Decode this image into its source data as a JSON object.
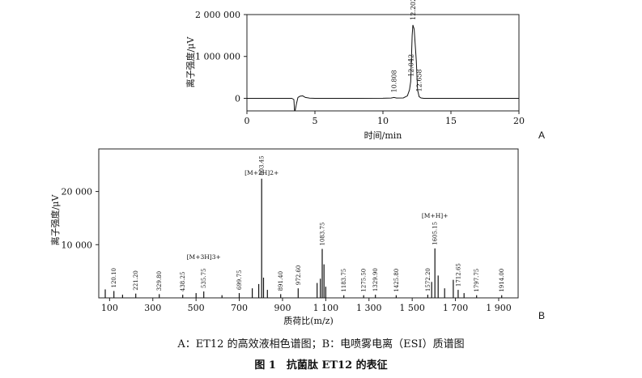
{
  "figure": {
    "subcaption": "A：ET12 的高效液相色谱图；B：电喷雾电离（ESI）质谱图",
    "caption": "图 1　抗菌肽 ET12 的表征"
  },
  "chart_data": [
    {
      "type": "line",
      "panel_label": "A",
      "xlabel": "时间/min",
      "ylabel": "离子强度/μV",
      "xlim": [
        0,
        20
      ],
      "ylim": [
        -300000,
        2000000
      ],
      "xticks": [
        0,
        5,
        10,
        15,
        20
      ],
      "xtick_labels": [
        "0",
        "5",
        "10",
        "15",
        "20"
      ],
      "yticks": [
        0,
        1000000,
        2000000
      ],
      "ytick_labels": [
        "0",
        "1 000 000",
        "2 000 000"
      ],
      "grid": false,
      "series": [
        {
          "x": [
            0,
            3.3,
            3.45,
            3.5,
            3.55,
            3.65,
            3.75,
            3.9,
            4.1,
            4.3,
            4.6,
            5.0,
            6.0,
            8.0,
            10.0,
            10.6,
            10.808,
            11.0,
            11.5,
            11.8,
            11.95,
            12.042,
            12.1,
            12.15,
            12.202,
            12.3,
            12.45,
            12.55,
            12.658,
            12.8,
            13.0,
            14.0,
            20.0
          ],
          "y": [
            0,
            0,
            -30000,
            -290000,
            -290000,
            -120000,
            20000,
            50000,
            60000,
            20000,
            5000,
            0,
            0,
            0,
            2000,
            8000,
            20000,
            8000,
            10000,
            60000,
            200000,
            400000,
            1000000,
            1500000,
            1750000,
            1650000,
            900000,
            200000,
            40000,
            10000,
            0,
            0,
            0
          ]
        }
      ],
      "peak_labels": [
        {
          "x": 10.808,
          "text": "10.808"
        },
        {
          "x": 12.042,
          "text": "12.042"
        },
        {
          "x": 12.202,
          "text": "12.202"
        },
        {
          "x": 12.658,
          "text": "12.658"
        }
      ]
    },
    {
      "type": "bar",
      "panel_label": "B",
      "xlabel": "质荷比(m/z)",
      "ylabel": "离子强度/μV",
      "xlim": [
        50,
        1990
      ],
      "ylim": [
        0,
        28000
      ],
      "xticks": [
        100,
        300,
        500,
        700,
        900,
        1100,
        1300,
        1500,
        1700,
        1900
      ],
      "xtick_labels": [
        "100",
        "300",
        "500",
        "700",
        "900",
        "1 100",
        "1 300",
        "1 500",
        "1 700",
        "1 900"
      ],
      "yticks": [
        10000,
        20000
      ],
      "ytick_labels": [
        "10 000",
        "20 000"
      ],
      "grid": false,
      "peaks": [
        {
          "mz": 80,
          "intensity": 1600
        },
        {
          "mz": 120.1,
          "intensity": 1300,
          "label": "120.10"
        },
        {
          "mz": 160,
          "intensity": 600
        },
        {
          "mz": 221.2,
          "intensity": 800,
          "label": "221.20"
        },
        {
          "mz": 329.8,
          "intensity": 700,
          "label": "329.80"
        },
        {
          "mz": 438.25,
          "intensity": 600,
          "label": "438.25"
        },
        {
          "mz": 500,
          "intensity": 900
        },
        {
          "mz": 535.75,
          "intensity": 1200,
          "label": "535.75",
          "annotation": "[M+3H]3+"
        },
        {
          "mz": 620,
          "intensity": 500
        },
        {
          "mz": 699.75,
          "intensity": 900,
          "label": "699.75"
        },
        {
          "mz": 760,
          "intensity": 1800
        },
        {
          "mz": 790,
          "intensity": 2600
        },
        {
          "mz": 803.45,
          "intensity": 22400,
          "label": "803.45",
          "annotation": "[M+2H]2+"
        },
        {
          "mz": 812,
          "intensity": 3800
        },
        {
          "mz": 830,
          "intensity": 1500
        },
        {
          "mz": 891.4,
          "intensity": 700,
          "label": "891.40"
        },
        {
          "mz": 972.6,
          "intensity": 1800,
          "label": "972.60"
        },
        {
          "mz": 1060,
          "intensity": 2800
        },
        {
          "mz": 1075,
          "intensity": 3600
        },
        {
          "mz": 1083.75,
          "intensity": 9200,
          "label": "1083.75"
        },
        {
          "mz": 1092,
          "intensity": 6300
        },
        {
          "mz": 1100,
          "intensity": 2100
        },
        {
          "mz": 1183.75,
          "intensity": 500,
          "label": "1183.75"
        },
        {
          "mz": 1275.5,
          "intensity": 500,
          "label": "1275.50"
        },
        {
          "mz": 1329.9,
          "intensity": 600,
          "label": "1329.90"
        },
        {
          "mz": 1425.8,
          "intensity": 500,
          "label": "1425.80"
        },
        {
          "mz": 1572.2,
          "intensity": 600,
          "label": "1572.20"
        },
        {
          "mz": 1590,
          "intensity": 3000
        },
        {
          "mz": 1605.15,
          "intensity": 9300,
          "label": "1605.15",
          "annotation": "[M+H]+"
        },
        {
          "mz": 1620,
          "intensity": 4200
        },
        {
          "mz": 1650,
          "intensity": 1800
        },
        {
          "mz": 1690,
          "intensity": 3400
        },
        {
          "mz": 1712.65,
          "intensity": 1500,
          "label": "1712.65"
        },
        {
          "mz": 1740,
          "intensity": 900
        },
        {
          "mz": 1797.75,
          "intensity": 500,
          "label": "1797.75"
        },
        {
          "mz": 1914,
          "intensity": 500,
          "label": "1914.00"
        }
      ]
    }
  ]
}
